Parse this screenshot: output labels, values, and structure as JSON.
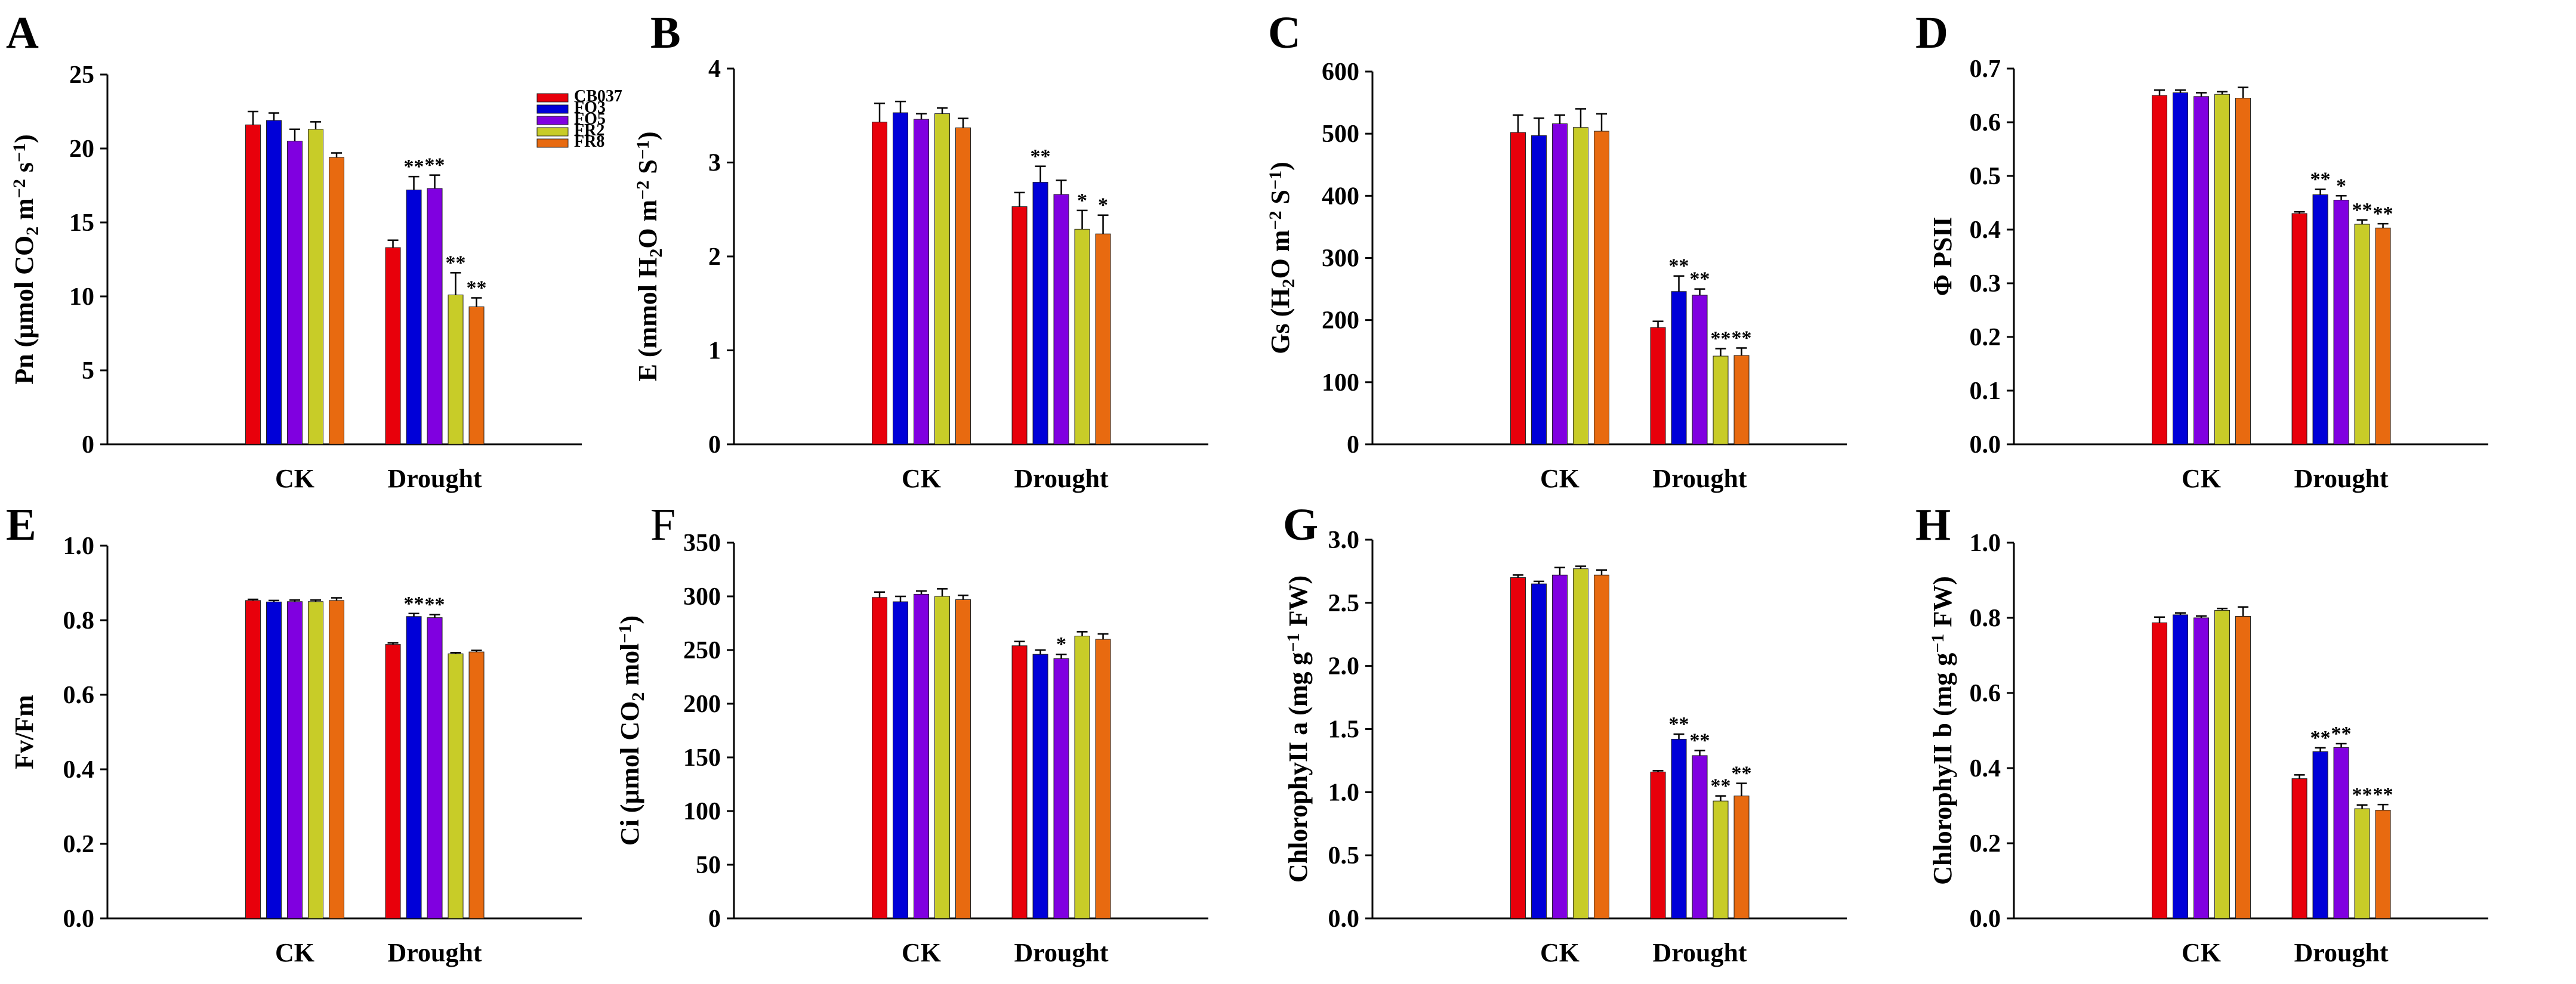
{
  "colors": {
    "CB037": "#e8000b",
    "FO3": "#0000d8",
    "FO5": "#8000e0",
    "FR2": "#c8cc28",
    "FR8": "#e86a10"
  },
  "chart_data": [
    {
      "type": "bar",
      "letter": "A",
      "ylabel_parts": [
        [
          "Pn (μmol CO",
          ""
        ],
        [
          "2",
          "sub"
        ],
        [
          " m",
          ""
        ],
        [
          "−2",
          "sup"
        ],
        [
          " s",
          ""
        ],
        [
          "−1",
          "sup"
        ],
        [
          ")",
          ""
        ]
      ],
      "ylim": [
        0,
        25
      ],
      "ticks": [
        "0",
        "5",
        "10",
        "15",
        "20",
        "25"
      ],
      "tick_values": [
        0,
        5,
        10,
        15,
        20,
        25
      ],
      "categories": [
        "CK",
        "Drought"
      ],
      "legend": [
        "CB037",
        "FO3",
        "FO5",
        "FR2",
        "FR8"
      ],
      "series": [
        {
          "name": "CB037",
          "values": [
            21.6,
            13.3
          ],
          "errors": [
            0.9,
            0.5
          ],
          "sig": [
            "",
            ""
          ]
        },
        {
          "name": "FO3",
          "values": [
            21.9,
            17.2
          ],
          "errors": [
            0.5,
            0.9
          ],
          "sig": [
            "",
            "**"
          ]
        },
        {
          "name": "FO5",
          "values": [
            20.5,
            17.3
          ],
          "errors": [
            0.8,
            0.9
          ],
          "sig": [
            "",
            "**"
          ]
        },
        {
          "name": "FR2",
          "values": [
            21.3,
            10.1
          ],
          "errors": [
            0.5,
            1.5
          ],
          "sig": [
            "",
            "**"
          ]
        },
        {
          "name": "FR8",
          "values": [
            19.4,
            9.3
          ],
          "errors": [
            0.3,
            0.6
          ],
          "sig": [
            "",
            "**"
          ]
        }
      ]
    },
    {
      "type": "bar",
      "letter": "B",
      "ylabel_parts": [
        [
          "E (mmol H",
          ""
        ],
        [
          "2",
          "sub"
        ],
        [
          "O m",
          ""
        ],
        [
          "−2",
          "sup"
        ],
        [
          " S",
          ""
        ],
        [
          "−1",
          "sup"
        ],
        [
          ")",
          ""
        ]
      ],
      "ylim": [
        0,
        4
      ],
      "ticks": [
        "0",
        "1",
        "2",
        "3",
        "4"
      ],
      "tick_values": [
        0,
        1,
        2,
        3,
        4
      ],
      "categories": [
        "CK",
        "Drought"
      ],
      "series": [
        {
          "name": "CB037",
          "values": [
            3.43,
            2.53
          ],
          "errors": [
            0.2,
            0.15
          ],
          "sig": [
            "",
            ""
          ]
        },
        {
          "name": "FO3",
          "values": [
            3.53,
            2.79
          ],
          "errors": [
            0.12,
            0.17
          ],
          "sig": [
            "",
            "**"
          ]
        },
        {
          "name": "FO5",
          "values": [
            3.46,
            2.66
          ],
          "errors": [
            0.06,
            0.15
          ],
          "sig": [
            "",
            ""
          ]
        },
        {
          "name": "FR2",
          "values": [
            3.52,
            2.29
          ],
          "errors": [
            0.06,
            0.2
          ],
          "sig": [
            "",
            "*"
          ]
        },
        {
          "name": "FR8",
          "values": [
            3.37,
            2.24
          ],
          "errors": [
            0.1,
            0.2
          ],
          "sig": [
            "",
            "*"
          ]
        }
      ]
    },
    {
      "type": "bar",
      "letter": "C",
      "ylabel_parts": [
        [
          "Gs (H",
          ""
        ],
        [
          "2",
          "sub"
        ],
        [
          "O m",
          ""
        ],
        [
          "−2",
          "sup"
        ],
        [
          " S",
          ""
        ],
        [
          "−1",
          "sup"
        ],
        [
          ")",
          ""
        ]
      ],
      "ylim": [
        0,
        600
      ],
      "ticks": [
        "0",
        "100",
        "200",
        "300",
        "400",
        "500",
        "600"
      ],
      "tick_values": [
        0,
        100,
        200,
        300,
        400,
        500,
        600
      ],
      "categories": [
        "CK",
        "Drought"
      ],
      "series": [
        {
          "name": "CB037",
          "values": [
            502,
            188
          ],
          "errors": [
            28,
            10
          ],
          "sig": [
            "",
            ""
          ]
        },
        {
          "name": "FO3",
          "values": [
            497,
            246
          ],
          "errors": [
            28,
            25
          ],
          "sig": [
            "",
            "**"
          ]
        },
        {
          "name": "FO5",
          "values": [
            516,
            240
          ],
          "errors": [
            14,
            10
          ],
          "sig": [
            "",
            "**"
          ]
        },
        {
          "name": "FR2",
          "values": [
            510,
            142
          ],
          "errors": [
            30,
            12
          ],
          "sig": [
            "",
            "**"
          ]
        },
        {
          "name": "FR8",
          "values": [
            504,
            143
          ],
          "errors": [
            28,
            12
          ],
          "sig": [
            "",
            "**"
          ]
        }
      ]
    },
    {
      "type": "bar",
      "letter": "D",
      "ylabel_parts": [
        [
          "Φ PSII",
          ""
        ]
      ],
      "ylim": [
        0,
        0.7
      ],
      "ticks": [
        "0.0",
        "0.1",
        "0.2",
        "0.3",
        "0.4",
        "0.5",
        "0.6",
        "0.7"
      ],
      "tick_values": [
        0,
        0.1,
        0.2,
        0.3,
        0.4,
        0.5,
        0.6,
        0.7
      ],
      "categories": [
        "CK",
        "Drought"
      ],
      "series": [
        {
          "name": "CB037",
          "values": [
            0.65,
            0.43
          ],
          "errors": [
            0.01,
            0.003
          ],
          "sig": [
            "",
            ""
          ]
        },
        {
          "name": "FO3",
          "values": [
            0.655,
            0.465
          ],
          "errors": [
            0.005,
            0.01
          ],
          "sig": [
            "",
            "**"
          ]
        },
        {
          "name": "FO5",
          "values": [
            0.648,
            0.455
          ],
          "errors": [
            0.007,
            0.008
          ],
          "sig": [
            "",
            "*"
          ]
        },
        {
          "name": "FR2",
          "values": [
            0.652,
            0.41
          ],
          "errors": [
            0.005,
            0.008
          ],
          "sig": [
            "",
            "**"
          ]
        },
        {
          "name": "FR8",
          "values": [
            0.645,
            0.403
          ],
          "errors": [
            0.02,
            0.008
          ],
          "sig": [
            "",
            "**"
          ]
        }
      ]
    },
    {
      "type": "bar",
      "letter": "E",
      "ylabel_parts": [
        [
          "Fv/Fm",
          ""
        ]
      ],
      "ylim": [
        0,
        1.0
      ],
      "ticks": [
        "0.0",
        "0.2",
        "0.4",
        "0.6",
        "0.8",
        "1.0"
      ],
      "tick_values": [
        0,
        0.2,
        0.4,
        0.6,
        0.8,
        1.0
      ],
      "categories": [
        "CK",
        "Drought"
      ],
      "series": [
        {
          "name": "CB037",
          "values": [
            0.853,
            0.735
          ],
          "errors": [
            0.003,
            0.004
          ],
          "sig": [
            "",
            ""
          ]
        },
        {
          "name": "FO3",
          "values": [
            0.849,
            0.81
          ],
          "errors": [
            0.004,
            0.008
          ],
          "sig": [
            "",
            "**"
          ]
        },
        {
          "name": "FO5",
          "values": [
            0.85,
            0.807
          ],
          "errors": [
            0.004,
            0.008
          ],
          "sig": [
            "",
            "**"
          ]
        },
        {
          "name": "FR2",
          "values": [
            0.85,
            0.71
          ],
          "errors": [
            0.004,
            0.003
          ],
          "sig": [
            "",
            ""
          ]
        },
        {
          "name": "FR8",
          "values": [
            0.853,
            0.715
          ],
          "errors": [
            0.007,
            0.004
          ],
          "sig": [
            "",
            ""
          ]
        }
      ]
    },
    {
      "type": "bar",
      "letter": "F",
      "letter_plain": true,
      "ylabel_parts": [
        [
          "Ci (μmol CO",
          ""
        ],
        [
          "2",
          "sub"
        ],
        [
          " mol",
          ""
        ],
        [
          "−1",
          "sup"
        ],
        [
          ")",
          ""
        ]
      ],
      "ylim": [
        0,
        350
      ],
      "ticks": [
        "0",
        "50",
        "100",
        "150",
        "200",
        "250",
        "300",
        "350"
      ],
      "tick_values": [
        0,
        50,
        100,
        150,
        200,
        250,
        300,
        350
      ],
      "categories": [
        "CK",
        "Drought"
      ],
      "series": [
        {
          "name": "CB037",
          "values": [
            299,
            254
          ],
          "errors": [
            5,
            4
          ],
          "sig": [
            "",
            ""
          ]
        },
        {
          "name": "FO3",
          "values": [
            295,
            246
          ],
          "errors": [
            5,
            4
          ],
          "sig": [
            "",
            ""
          ]
        },
        {
          "name": "FO5",
          "values": [
            302,
            242
          ],
          "errors": [
            3,
            4
          ],
          "sig": [
            "",
            "*"
          ]
        },
        {
          "name": "FR2",
          "values": [
            300,
            263
          ],
          "errors": [
            7,
            4
          ],
          "sig": [
            "",
            ""
          ]
        },
        {
          "name": "FR8",
          "values": [
            297,
            260
          ],
          "errors": [
            4,
            5
          ],
          "sig": [
            "",
            ""
          ]
        }
      ]
    },
    {
      "type": "bar",
      "letter": "G",
      "ylabel_parts": [
        [
          "ChlorophyII a (mg g",
          ""
        ],
        [
          "−1",
          "sup"
        ],
        [
          " FW)",
          ""
        ]
      ],
      "ylim": [
        0,
        3.0
      ],
      "ticks": [
        "0.0",
        "0.5",
        "1.0",
        "1.5",
        "2.0",
        "2.5",
        "3.0"
      ],
      "tick_values": [
        0,
        0.5,
        1.0,
        1.5,
        2.0,
        2.5,
        3.0
      ],
      "categories": [
        "CK",
        "Drought"
      ],
      "series": [
        {
          "name": "CB037",
          "values": [
            2.7,
            1.16
          ],
          "errors": [
            0.02,
            0.01
          ],
          "sig": [
            "",
            ""
          ]
        },
        {
          "name": "FO3",
          "values": [
            2.65,
            1.42
          ],
          "errors": [
            0.02,
            0.04
          ],
          "sig": [
            "",
            "**"
          ]
        },
        {
          "name": "FO5",
          "values": [
            2.72,
            1.29
          ],
          "errors": [
            0.06,
            0.04
          ],
          "sig": [
            "",
            "**"
          ]
        },
        {
          "name": "FR2",
          "values": [
            2.77,
            0.93
          ],
          "errors": [
            0.02,
            0.04
          ],
          "sig": [
            "",
            "**"
          ]
        },
        {
          "name": "FR8",
          "values": [
            2.72,
            0.97
          ],
          "errors": [
            0.04,
            0.1
          ],
          "sig": [
            "",
            "**"
          ]
        }
      ]
    },
    {
      "type": "bar",
      "letter": "H",
      "ylabel_parts": [
        [
          "ChlorophyII b (mg g",
          ""
        ],
        [
          "−1",
          "sup"
        ],
        [
          " FW)",
          ""
        ]
      ],
      "ylim": [
        0,
        1.0
      ],
      "ticks": [
        "0.0",
        "0.2",
        "0.4",
        "0.6",
        "0.8",
        "1.0"
      ],
      "tick_values": [
        0,
        0.2,
        0.4,
        0.6,
        0.8,
        1.0
      ],
      "categories": [
        "CK",
        "Drought"
      ],
      "series": [
        {
          "name": "CB037",
          "values": [
            0.787,
            0.372
          ],
          "errors": [
            0.015,
            0.01
          ],
          "sig": [
            "",
            ""
          ]
        },
        {
          "name": "FO3",
          "values": [
            0.808,
            0.444
          ],
          "errors": [
            0.005,
            0.01
          ],
          "sig": [
            "",
            "**"
          ]
        },
        {
          "name": "FO5",
          "values": [
            0.8,
            0.455
          ],
          "errors": [
            0.005,
            0.01
          ],
          "sig": [
            "",
            "**"
          ]
        },
        {
          "name": "FR2",
          "values": [
            0.82,
            0.292
          ],
          "errors": [
            0.005,
            0.01
          ],
          "sig": [
            "",
            "**"
          ]
        },
        {
          "name": "FR8",
          "values": [
            0.804,
            0.288
          ],
          "errors": [
            0.025,
            0.015
          ],
          "sig": [
            "",
            "**"
          ]
        }
      ]
    }
  ]
}
